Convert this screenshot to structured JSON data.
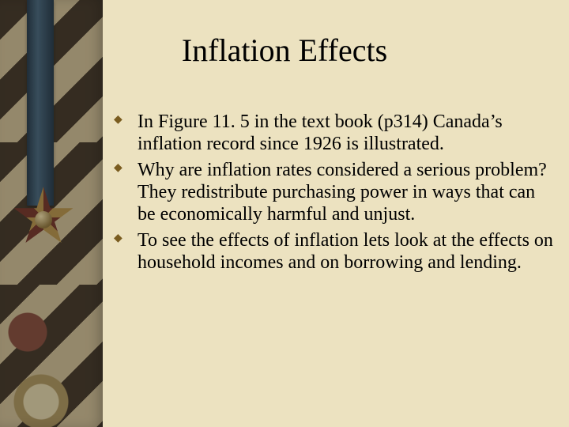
{
  "colors": {
    "background": "#ece2c0",
    "title": "#000000",
    "body": "#000000",
    "bullet": "#7a5c1f"
  },
  "title": "Inflation Effects",
  "bullets": [
    "In Figure 11. 5 in the text book (p314) Canada’s inflation record since 1926 is illustrated.",
    "Why are inflation rates considered a serious problem? They redistribute purchasing power in ways that can be economically harmful and unjust.",
    "To see the effects of inflation lets look at the effects on household incomes and on borrowing and lending."
  ]
}
